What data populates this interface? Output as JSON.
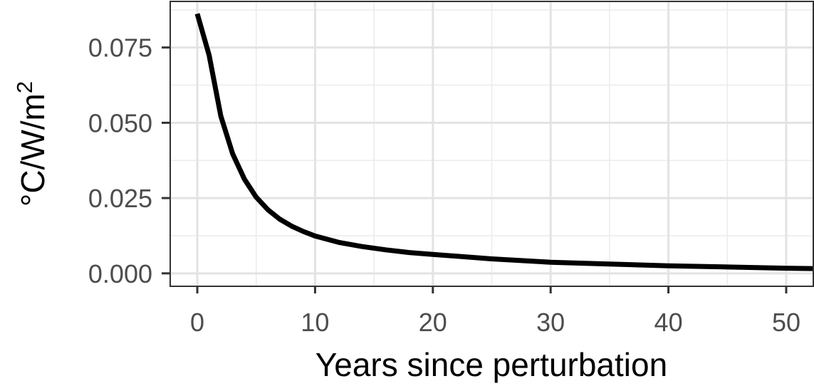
{
  "chart_data": {
    "type": "line",
    "xlabel": "Years since perturbation",
    "ylabel": "°C/W/m",
    "ylabel_superscript": "2",
    "xlim": [
      -2.3,
      52.3
    ],
    "ylim": [
      -0.0043,
      0.0903
    ],
    "x_ticks": [
      0,
      10,
      20,
      30,
      40,
      50
    ],
    "x_tick_labels": [
      "0",
      "10",
      "20",
      "30",
      "40",
      "50"
    ],
    "y_ticks": [
      0.0,
      0.025,
      0.05,
      0.075
    ],
    "y_tick_labels": [
      "0.000",
      "0.025",
      "0.050",
      "0.075"
    ],
    "grid": true,
    "series": [
      {
        "color": "#000000",
        "x": [
          0,
          1,
          2,
          3,
          4,
          5,
          6,
          7,
          8,
          9,
          10,
          12,
          14,
          16,
          18,
          20,
          25,
          30,
          35,
          40,
          45,
          50,
          52.3
        ],
        "y": [
          0.0862,
          0.0725,
          0.0522,
          0.0397,
          0.0313,
          0.0253,
          0.0211,
          0.018,
          0.0157,
          0.0139,
          0.0124,
          0.0103,
          0.0089,
          0.0078,
          0.0069,
          0.0063,
          0.0048,
          0.0037,
          0.0031,
          0.0025,
          0.0021,
          0.0017,
          0.0016
        ]
      }
    ]
  }
}
